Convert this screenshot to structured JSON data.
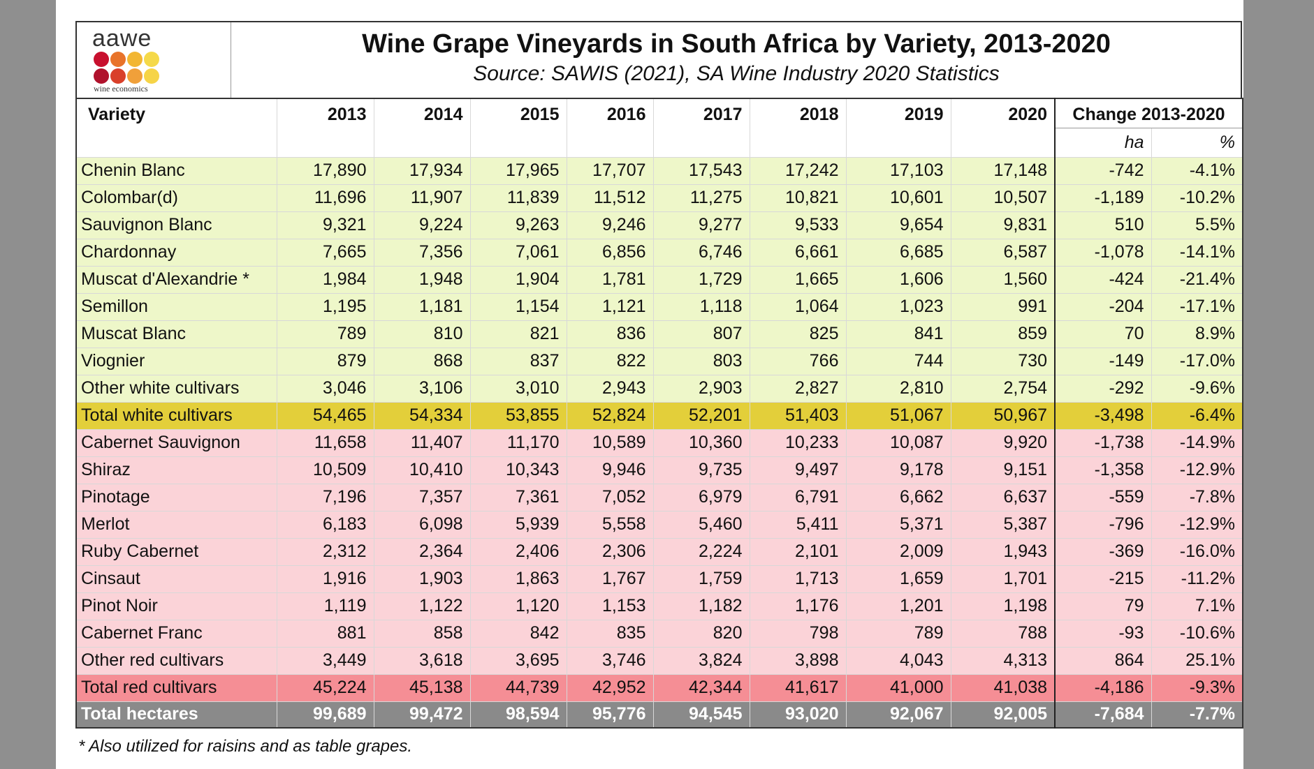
{
  "header": {
    "logo_text": "aawe",
    "logo_tagline": "wine economics",
    "title": "Wine Grape Vineyards in South Africa by Variety, 2013-2020",
    "subtitle": "Source: SAWIS (2021), SA Wine Industry 2020 Statistics"
  },
  "colors": {
    "white_rows": "#eef7c9",
    "red_rows": "#fbd3d8",
    "total_white": "#e3cf3a",
    "total_red": "#f58e95",
    "total_all": "#8a8a8a",
    "logo_dots": [
      "#c8102e",
      "#e8732a",
      "#f2b632",
      "#f5d949",
      "#b0122c",
      "#d9402b",
      "#f0a03a",
      "#f6d447"
    ]
  },
  "columns": {
    "variety": "Variety",
    "years": [
      "2013",
      "2014",
      "2015",
      "2016",
      "2017",
      "2018",
      "2019",
      "2020"
    ],
    "change": "Change 2013-2020",
    "change_ha": "ha",
    "change_pct": "%"
  },
  "chart_data": {
    "type": "table",
    "title": "Wine Grape Vineyards in South Africa by Variety, 2013-2020",
    "rows": [
      {
        "group": "white",
        "name": "Chenin Blanc",
        "values": [
          "17,890",
          "17,934",
          "17,965",
          "17,707",
          "17,543",
          "17,242",
          "17,103",
          "17,148"
        ],
        "change_ha": "-742",
        "change_pct": "-4.1%"
      },
      {
        "group": "white",
        "name": "Colombar(d)",
        "values": [
          "11,696",
          "11,907",
          "11,839",
          "11,512",
          "11,275",
          "10,821",
          "10,601",
          "10,507"
        ],
        "change_ha": "-1,189",
        "change_pct": "-10.2%"
      },
      {
        "group": "white",
        "name": "Sauvignon Blanc",
        "values": [
          "9,321",
          "9,224",
          "9,263",
          "9,246",
          "9,277",
          "9,533",
          "9,654",
          "9,831"
        ],
        "change_ha": "510",
        "change_pct": "5.5%"
      },
      {
        "group": "white",
        "name": "Chardonnay",
        "values": [
          "7,665",
          "7,356",
          "7,061",
          "6,856",
          "6,746",
          "6,661",
          "6,685",
          "6,587"
        ],
        "change_ha": "-1,078",
        "change_pct": "-14.1%"
      },
      {
        "group": "white",
        "name": "Muscat d'Alexandrie *",
        "values": [
          "1,984",
          "1,948",
          "1,904",
          "1,781",
          "1,729",
          "1,665",
          "1,606",
          "1,560"
        ],
        "change_ha": "-424",
        "change_pct": "-21.4%"
      },
      {
        "group": "white",
        "name": "Semillon",
        "values": [
          "1,195",
          "1,181",
          "1,154",
          "1,121",
          "1,118",
          "1,064",
          "1,023",
          "991"
        ],
        "change_ha": "-204",
        "change_pct": "-17.1%"
      },
      {
        "group": "white",
        "name": "Muscat Blanc",
        "values": [
          "789",
          "810",
          "821",
          "836",
          "807",
          "825",
          "841",
          "859"
        ],
        "change_ha": "70",
        "change_pct": "8.9%"
      },
      {
        "group": "white",
        "name": "Viognier",
        "values": [
          "879",
          "868",
          "837",
          "822",
          "803",
          "766",
          "744",
          "730"
        ],
        "change_ha": "-149",
        "change_pct": "-17.0%"
      },
      {
        "group": "white",
        "name": "Other white cultivars",
        "values": [
          "3,046",
          "3,106",
          "3,010",
          "2,943",
          "2,903",
          "2,827",
          "2,810",
          "2,754"
        ],
        "change_ha": "-292",
        "change_pct": "-9.6%"
      },
      {
        "group": "total-white",
        "name": "Total white cultivars",
        "values": [
          "54,465",
          "54,334",
          "53,855",
          "52,824",
          "52,201",
          "51,403",
          "51,067",
          "50,967"
        ],
        "change_ha": "-3,498",
        "change_pct": "-6.4%"
      },
      {
        "group": "red",
        "name": "Cabernet Sauvignon",
        "values": [
          "11,658",
          "11,407",
          "11,170",
          "10,589",
          "10,360",
          "10,233",
          "10,087",
          "9,920"
        ],
        "change_ha": "-1,738",
        "change_pct": "-14.9%"
      },
      {
        "group": "red",
        "name": "Shiraz",
        "values": [
          "10,509",
          "10,410",
          "10,343",
          "9,946",
          "9,735",
          "9,497",
          "9,178",
          "9,151"
        ],
        "change_ha": "-1,358",
        "change_pct": "-12.9%"
      },
      {
        "group": "red",
        "name": "Pinotage",
        "values": [
          "7,196",
          "7,357",
          "7,361",
          "7,052",
          "6,979",
          "6,791",
          "6,662",
          "6,637"
        ],
        "change_ha": "-559",
        "change_pct": "-7.8%"
      },
      {
        "group": "red",
        "name": "Merlot",
        "values": [
          "6,183",
          "6,098",
          "5,939",
          "5,558",
          "5,460",
          "5,411",
          "5,371",
          "5,387"
        ],
        "change_ha": "-796",
        "change_pct": "-12.9%"
      },
      {
        "group": "red",
        "name": "Ruby Cabernet",
        "values": [
          "2,312",
          "2,364",
          "2,406",
          "2,306",
          "2,224",
          "2,101",
          "2,009",
          "1,943"
        ],
        "change_ha": "-369",
        "change_pct": "-16.0%"
      },
      {
        "group": "red",
        "name": "Cinsaut",
        "values": [
          "1,916",
          "1,903",
          "1,863",
          "1,767",
          "1,759",
          "1,713",
          "1,659",
          "1,701"
        ],
        "change_ha": "-215",
        "change_pct": "-11.2%"
      },
      {
        "group": "red",
        "name": "Pinot Noir",
        "values": [
          "1,119",
          "1,122",
          "1,120",
          "1,153",
          "1,182",
          "1,176",
          "1,201",
          "1,198"
        ],
        "change_ha": "79",
        "change_pct": "7.1%"
      },
      {
        "group": "red",
        "name": "Cabernet Franc",
        "values": [
          "881",
          "858",
          "842",
          "835",
          "820",
          "798",
          "789",
          "788"
        ],
        "change_ha": "-93",
        "change_pct": "-10.6%"
      },
      {
        "group": "red",
        "name": "Other red cultivars",
        "values": [
          "3,449",
          "3,618",
          "3,695",
          "3,746",
          "3,824",
          "3,898",
          "4,043",
          "4,313"
        ],
        "change_ha": "864",
        "change_pct": "25.1%"
      },
      {
        "group": "total-red",
        "name": "Total red cultivars",
        "values": [
          "45,224",
          "45,138",
          "44,739",
          "42,952",
          "42,344",
          "41,617",
          "41,000",
          "41,038"
        ],
        "change_ha": "-4,186",
        "change_pct": "-9.3%"
      },
      {
        "group": "total-all",
        "name": "Total hectares",
        "values": [
          "99,689",
          "99,472",
          "98,594",
          "95,776",
          "94,545",
          "93,020",
          "92,067",
          "92,005"
        ],
        "change_ha": "-7,684",
        "change_pct": "-7.7%"
      }
    ]
  },
  "footnote": "* Also utilized for raisins and as table grapes."
}
